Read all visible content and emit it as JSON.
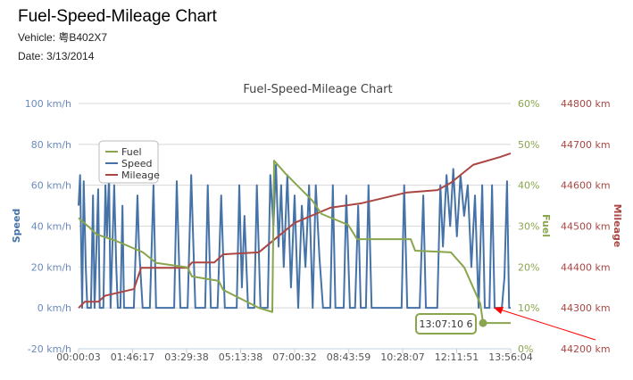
{
  "header": {
    "title": "Fuel-Speed-Mileage Chart",
    "vehicle_label": "Vehicle: 粤B402X7",
    "date_label": "Date: 3/13/2014"
  },
  "colors": {
    "speed": "#4572A7",
    "fuel": "#89A54E",
    "mileage": "#AA4643",
    "arrow": "#FF0000"
  },
  "chart_data": {
    "type": "line",
    "title": "Fuel-Speed-Mileage Chart",
    "grid": true,
    "legend_placement": "top-left",
    "x_ticks": [
      "00:00:03",
      "01:46:17",
      "03:29:38",
      "05:13:38",
      "07:00:32",
      "08:43:59",
      "10:28:07",
      "12:11:51",
      "13:56:04"
    ],
    "xlim": [
      "00:00:03",
      "13:56:04"
    ],
    "axes": {
      "speed": {
        "title": "Speed",
        "ylim": [
          -20,
          100
        ],
        "ticks": [
          "-20 km/h",
          "0 km/h",
          "20 km/h",
          "40 km/h",
          "60 km/h",
          "80 km/h",
          "100 km/h"
        ]
      },
      "fuel": {
        "title": "Fuel",
        "ylim": [
          0,
          60
        ],
        "ticks": [
          "0%",
          "10%",
          "20%",
          "30%",
          "40%",
          "50%",
          "60%"
        ]
      },
      "mileage": {
        "title": "Mileage",
        "ylim": [
          44200,
          44800
        ],
        "ticks": [
          "44200 km",
          "44300 km",
          "44400 km",
          "44500 km",
          "44600 km",
          "44700 km",
          "44800 km"
        ]
      }
    },
    "series": [
      {
        "name": "Fuel",
        "axis": "fuel",
        "points": [
          [
            "00:00:03",
            32
          ],
          [
            "00:20:47",
            29.7
          ],
          [
            "00:34:36",
            28
          ],
          [
            "01:12:36",
            26.4
          ],
          [
            "02:04:25",
            23.6
          ],
          [
            "02:30:20",
            21
          ],
          [
            "03:30:47",
            19.9
          ],
          [
            "03:39:25",
            17.7
          ],
          [
            "04:31:14",
            16.6
          ],
          [
            "04:39:53",
            14.4
          ],
          [
            "05:48:58",
            10
          ],
          [
            "06:14:53",
            9
          ],
          [
            "06:18:20",
            46
          ],
          [
            "06:40:47",
            42.8
          ],
          [
            "07:32:37",
            36.2
          ],
          [
            "07:49:53",
            33
          ],
          [
            "08:41:42",
            30.3
          ],
          [
            "08:58:59",
            26.8
          ],
          [
            "10:42:37",
            26.8
          ],
          [
            "10:51:15",
            24
          ],
          [
            "12:00:21",
            23.6
          ],
          [
            "12:26:16",
            19.9
          ],
          [
            "12:57:22",
            11
          ],
          [
            "13:02:33",
            6.3
          ],
          [
            "13:56:04",
            6.3
          ]
        ]
      },
      {
        "name": "Speed",
        "axis": "speed",
        "points": [
          [
            "00:00:03",
            50
          ],
          [
            "00:03",
            65
          ],
          [
            "00:07",
            0
          ],
          [
            "00:10",
            62
          ],
          [
            "00:14",
            20
          ],
          [
            "00:17",
            0
          ],
          [
            "00:24",
            0
          ],
          [
            "00:28",
            55
          ],
          [
            "00:31",
            0
          ],
          [
            "00:38",
            58
          ],
          [
            "00:41",
            0
          ],
          [
            "00:48",
            0
          ],
          [
            "00:52",
            60
          ],
          [
            "00:55",
            35
          ],
          [
            "00:59",
            65
          ],
          [
            "01:02",
            0
          ],
          [
            "01:09",
            60
          ],
          [
            "01:13",
            20
          ],
          [
            "01:16",
            0
          ],
          [
            "01:21",
            0
          ],
          [
            "01:25",
            50
          ],
          [
            "01:28",
            0
          ],
          [
            "01:47",
            0
          ],
          [
            "01:54",
            55
          ],
          [
            "01:57",
            30
          ],
          [
            "02:04",
            0
          ],
          [
            "02:18",
            0
          ],
          [
            "02:25",
            60
          ],
          [
            "02:30",
            0
          ],
          [
            "03:05",
            0
          ],
          [
            "03:10",
            62
          ],
          [
            "03:17",
            0
          ],
          [
            "03:31",
            0
          ],
          [
            "03:38",
            65
          ],
          [
            "03:41",
            40
          ],
          [
            "03:46",
            0
          ],
          [
            "04:05",
            0
          ],
          [
            "04:10",
            60
          ],
          [
            "04:16",
            0
          ],
          [
            "04:29",
            0
          ],
          [
            "04:36",
            55
          ],
          [
            "04:43",
            0
          ],
          [
            "05:06",
            0
          ],
          [
            "05:11",
            60
          ],
          [
            "05:16",
            10
          ],
          [
            "05:21",
            45
          ],
          [
            "05:28",
            0
          ],
          [
            "05:40",
            0
          ],
          [
            "05:45",
            60
          ],
          [
            "05:52",
            0
          ],
          [
            "06:06",
            0
          ],
          [
            "06:11",
            65
          ],
          [
            "06:17",
            40
          ],
          [
            "06:22",
            70
          ],
          [
            "06:27",
            30
          ],
          [
            "06:32",
            60
          ],
          [
            "06:37",
            20
          ],
          [
            "06:44",
            65
          ],
          [
            "06:51",
            10
          ],
          [
            "06:58",
            55
          ],
          [
            "07:05",
            0
          ],
          [
            "07:12",
            50
          ],
          [
            "07:19",
            20
          ],
          [
            "07:26",
            60
          ],
          [
            "07:33",
            0
          ],
          [
            "07:39",
            60
          ],
          [
            "07:46",
            25
          ],
          [
            "07:53",
            0
          ],
          [
            "08:07",
            0
          ],
          [
            "08:12",
            60
          ],
          [
            "08:17",
            0
          ],
          [
            "08:33",
            0
          ],
          [
            "08:38",
            55
          ],
          [
            "08:45",
            0
          ],
          [
            "08:55",
            0
          ],
          [
            "09:01",
            50
          ],
          [
            "09:06",
            0
          ],
          [
            "09:16",
            0
          ],
          [
            "09:21",
            60
          ],
          [
            "09:27",
            0
          ],
          [
            "10:25",
            0
          ],
          [
            "10:30",
            60
          ],
          [
            "10:36",
            0
          ],
          [
            "11:00",
            0
          ],
          [
            "11:07",
            55
          ],
          [
            "11:12",
            0
          ],
          [
            "11:34",
            0
          ],
          [
            "11:40",
            60
          ],
          [
            "11:45",
            30
          ],
          [
            "11:52",
            65
          ],
          [
            "11:59",
            40
          ],
          [
            "12:05",
            68
          ],
          [
            "12:12",
            35
          ],
          [
            "12:19",
            65
          ],
          [
            "12:26",
            45
          ],
          [
            "12:33",
            60
          ],
          [
            "12:40",
            20
          ],
          [
            "12:47",
            55
          ],
          [
            "12:54",
            0
          ],
          [
            "13:01",
            60
          ],
          [
            "13:06",
            0
          ],
          [
            "13:15",
            0
          ],
          [
            "13:20",
            60
          ],
          [
            "13:25",
            0
          ],
          [
            "13:39",
            0
          ],
          [
            "13:44",
            15
          ],
          [
            "13:49",
            62
          ],
          [
            "13:53",
            0
          ],
          [
            "13:56:04",
            0
          ]
        ]
      },
      {
        "name": "Mileage",
        "axis": "mileage",
        "points": [
          [
            "00:00:03",
            44300
          ],
          [
            "00:12:08",
            44315
          ],
          [
            "00:38:03",
            44315
          ],
          [
            "00:51:52",
            44330
          ],
          [
            "01:47:09",
            44346
          ],
          [
            "02:00:58",
            44398
          ],
          [
            "03:30:47",
            44398
          ],
          [
            "03:39:25",
            44411
          ],
          [
            "04:22:36",
            44411
          ],
          [
            "04:39:53",
            44431
          ],
          [
            "05:48:58",
            44436
          ],
          [
            "06:58:04",
            44508
          ],
          [
            "08:07:09",
            44545
          ],
          [
            "09:07:37",
            44556
          ],
          [
            "10:33:59",
            44582
          ],
          [
            "11:34:26",
            44588
          ],
          [
            "12:00:21",
            44606
          ],
          [
            "12:43:32",
            44650
          ],
          [
            "13:35:21",
            44669
          ],
          [
            "13:56:04",
            44678
          ]
        ]
      }
    ],
    "annotations": [
      {
        "label": "13:07:10 6",
        "series": "Fuel",
        "at": "13:02:33",
        "value": 6.3
      }
    ]
  }
}
